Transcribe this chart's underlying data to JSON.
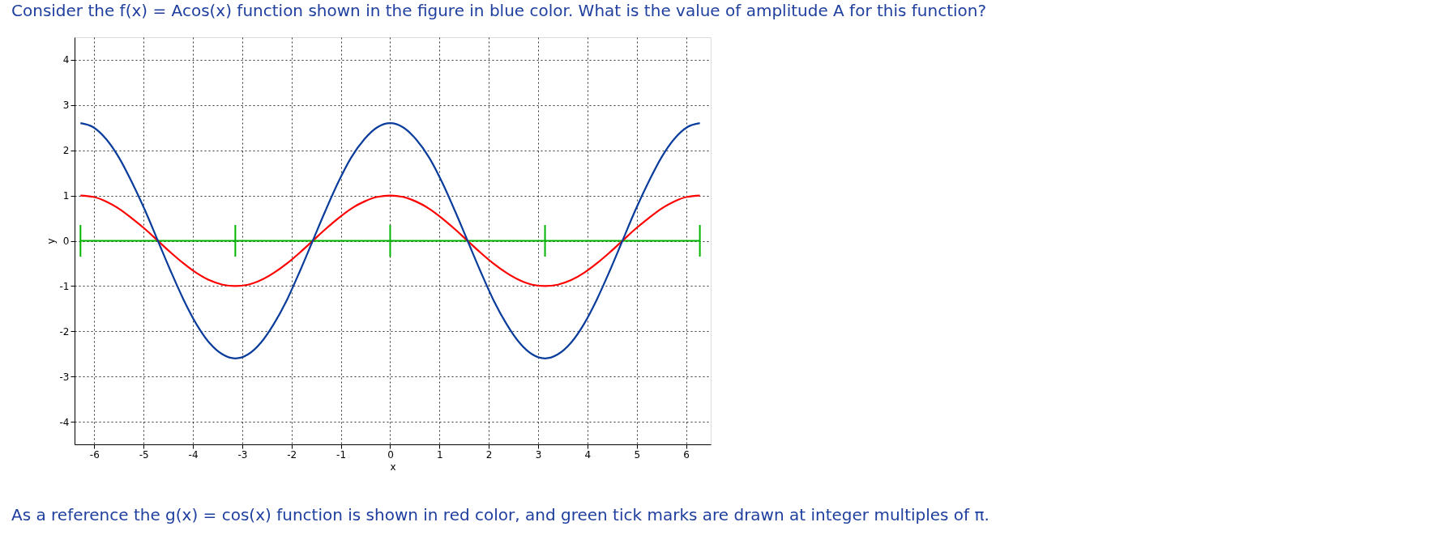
{
  "chart_data": {
    "type": "line",
    "title": "Consider the f(x) = Acos(x) function shown in the figure in blue color. What is the value of amplitude A for this function?",
    "xlabel": "x",
    "ylabel": "y",
    "annotations": [
      "As a reference the g(x) = cos(x) function is shown in red color, and green tick marks are drawn at integer multiples of π."
    ],
    "xlim": [
      -6.4,
      6.5
    ],
    "ylim": [
      -4.5,
      4.5
    ],
    "xticks": [
      -6,
      -5,
      -4,
      -3,
      -2,
      -1,
      0,
      1,
      2,
      3,
      4,
      5,
      6
    ],
    "yticks": [
      -4,
      -3,
      -2,
      -1,
      0,
      1,
      2,
      3,
      4
    ],
    "grid": true,
    "series": [
      {
        "color": "#00b400",
        "x": [
          -6.28,
          -3.14,
          0,
          3.14,
          6.28
        ],
        "values": [
          0,
          0,
          0,
          0,
          0
        ],
        "errors": [
          [
            -0.35,
            0.35
          ],
          [
            -0.35,
            0.35
          ],
          [
            -0.35,
            0.35
          ],
          [
            -0.35,
            0.35
          ],
          [
            -0.35,
            0.35
          ]
        ]
      },
      {
        "color": "#ff0000",
        "x": [
          -6.28,
          -6.02,
          -5.76,
          -5.5,
          -5.24,
          -4.97,
          -4.71,
          -4.45,
          -4.19,
          -3.93,
          -3.67,
          -3.4,
          -3.14,
          -2.88,
          -2.62,
          -2.36,
          -2.09,
          -1.83,
          -1.57,
          -1.31,
          -1.05,
          -0.79,
          -0.52,
          -0.26,
          0,
          0.26,
          0.52,
          0.79,
          1.05,
          1.31,
          1.57,
          1.83,
          2.09,
          2.36,
          2.62,
          2.88,
          3.14,
          3.4,
          3.67,
          3.93,
          4.19,
          4.45,
          4.71,
          4.97,
          5.24,
          5.5,
          5.76,
          6.02,
          6.28
        ],
        "values": [
          1,
          0.97,
          0.87,
          0.71,
          0.5,
          0.26,
          0,
          -0.26,
          -0.5,
          -0.71,
          -0.87,
          -0.97,
          -1,
          -0.97,
          -0.87,
          -0.71,
          -0.5,
          -0.26,
          0,
          0.26,
          0.5,
          0.71,
          0.87,
          0.97,
          1,
          0.97,
          0.87,
          0.71,
          0.5,
          0.26,
          0,
          -0.26,
          -0.5,
          -0.71,
          -0.87,
          -0.97,
          -1,
          -0.97,
          -0.87,
          -0.71,
          -0.5,
          -0.26,
          0,
          0.26,
          0.5,
          0.71,
          0.87,
          0.97,
          1
        ]
      },
      {
        "color": "#0a3c9c",
        "x": [
          -6.28,
          -6.02,
          -5.76,
          -5.5,
          -5.24,
          -4.97,
          -4.71,
          -4.45,
          -4.19,
          -3.93,
          -3.67,
          -3.4,
          -3.14,
          -2.88,
          -2.62,
          -2.36,
          -2.09,
          -1.83,
          -1.57,
          -1.31,
          -1.05,
          -0.79,
          -0.52,
          -0.26,
          0,
          0.26,
          0.52,
          0.79,
          1.05,
          1.31,
          1.57,
          1.83,
          2.09,
          2.36,
          2.62,
          2.88,
          3.14,
          3.4,
          3.67,
          3.93,
          4.19,
          4.45,
          4.71,
          4.97,
          5.24,
          5.5,
          5.76,
          6.02,
          6.28
        ],
        "values": [
          2.6,
          2.51,
          2.25,
          1.84,
          1.3,
          0.67,
          0,
          -0.67,
          -1.3,
          -1.84,
          -2.25,
          -2.51,
          -2.6,
          -2.51,
          -2.25,
          -1.84,
          -1.3,
          -0.67,
          0,
          0.67,
          1.3,
          1.84,
          2.25,
          2.51,
          2.6,
          2.51,
          2.25,
          1.84,
          1.3,
          0.67,
          0,
          -0.67,
          -1.3,
          -1.84,
          -2.25,
          -2.51,
          -2.6,
          -2.51,
          -2.25,
          -1.84,
          -1.3,
          -0.67,
          0,
          0.67,
          1.3,
          1.84,
          2.25,
          2.51,
          2.6
        ]
      }
    ]
  }
}
